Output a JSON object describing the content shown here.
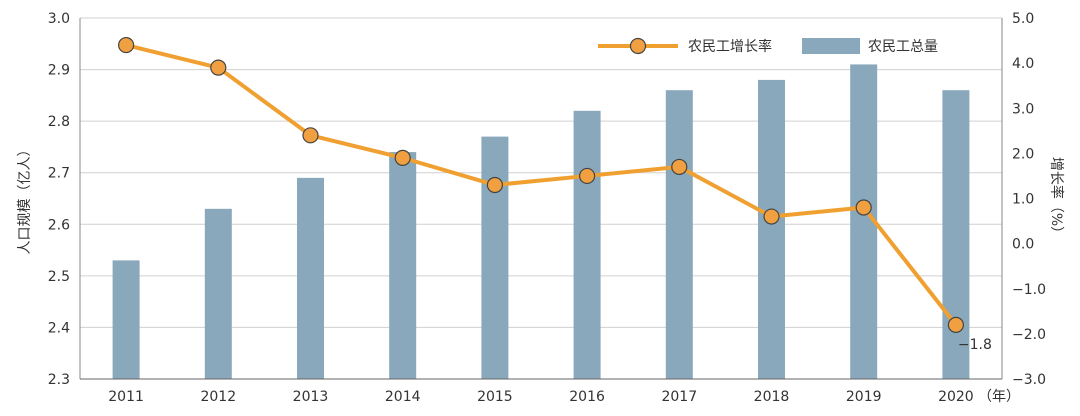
{
  "chart_data": {
    "type": "bar+line",
    "categories": [
      "2011",
      "2012",
      "2013",
      "2014",
      "2015",
      "2016",
      "2017",
      "2018",
      "2019",
      "2020"
    ],
    "x_unit": "（年）",
    "series": [
      {
        "name": "农民工总量",
        "type": "bar",
        "axis": "left",
        "values": [
          2.53,
          2.63,
          2.69,
          2.74,
          2.77,
          2.82,
          2.86,
          2.88,
          2.91,
          2.86
        ],
        "color": "#89a8bb"
      },
      {
        "name": "农民工增长率",
        "type": "line",
        "axis": "right",
        "values": [
          4.4,
          3.9,
          2.4,
          1.9,
          1.3,
          1.5,
          1.7,
          0.6,
          0.8,
          -1.8
        ],
        "color": "#f0a030",
        "marker_color": "#f0a040"
      }
    ],
    "y_left": {
      "label": "人口规模（亿人）",
      "lim": [
        2.3,
        3.0
      ],
      "ticks": [
        "2.3",
        "2.4",
        "2.5",
        "2.6",
        "2.7",
        "2.8",
        "2.9",
        "3.0"
      ]
    },
    "y_right": {
      "label": "增长率（%）",
      "lim": [
        -3.0,
        5.0
      ],
      "ticks": [
        "−3.0",
        "−2.0",
        "−1.0",
        "0.0",
        "1.0",
        "2.0",
        "3.0",
        "4.0",
        "5.0"
      ]
    },
    "data_labels": [
      {
        "series": "农民工增长率",
        "category": "2020",
        "text": "−1.8"
      }
    ],
    "grid": true,
    "legend_position": "top-right"
  }
}
